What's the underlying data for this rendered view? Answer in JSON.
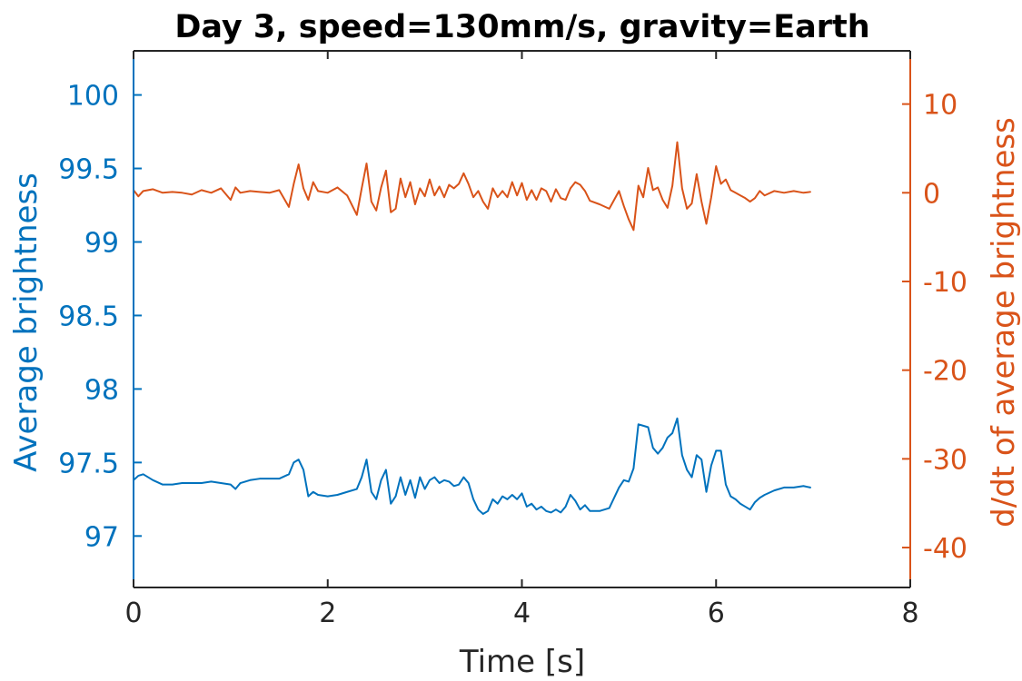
{
  "chart_data": {
    "type": "line",
    "title": "Day 3, speed=130mm/s, gravity=Earth",
    "xlabel": "Time [s]",
    "ylabel_left": "Average brightness",
    "ylabel_right": "d/dt of average brightness",
    "xlim": [
      0,
      8
    ],
    "ylim_left": [
      96.65,
      100.3
    ],
    "ylim_right": [
      -44.5,
      16
    ],
    "x_ticks": [
      "0",
      "2",
      "4",
      "6",
      "8"
    ],
    "y_left_ticks": [
      "97",
      "97.5",
      "98",
      "98.5",
      "99",
      "99.5",
      "100"
    ],
    "y_right_ticks": [
      "-40",
      "-30",
      "-20",
      "-10",
      "0",
      "10"
    ],
    "grid": false,
    "colors": {
      "left": "#0072BD",
      "right": "#D95319",
      "frame": "#262626"
    },
    "series": [
      {
        "axis": "left",
        "x": [
          0.0,
          0.05,
          0.1,
          0.2,
          0.3,
          0.4,
          0.5,
          0.6,
          0.7,
          0.8,
          0.9,
          1.0,
          1.05,
          1.1,
          1.2,
          1.3,
          1.4,
          1.5,
          1.6,
          1.65,
          1.7,
          1.75,
          1.8,
          1.85,
          1.9,
          2.0,
          2.1,
          2.2,
          2.3,
          2.35,
          2.4,
          2.45,
          2.5,
          2.55,
          2.6,
          2.65,
          2.7,
          2.75,
          2.8,
          2.85,
          2.9,
          2.95,
          3.0,
          3.05,
          3.1,
          3.15,
          3.2,
          3.25,
          3.3,
          3.35,
          3.4,
          3.45,
          3.5,
          3.55,
          3.6,
          3.65,
          3.7,
          3.75,
          3.8,
          3.85,
          3.9,
          3.95,
          4.0,
          4.05,
          4.1,
          4.15,
          4.2,
          4.25,
          4.3,
          4.35,
          4.4,
          4.45,
          4.5,
          4.55,
          4.6,
          4.65,
          4.7,
          4.8,
          4.9,
          5.0,
          5.05,
          5.1,
          5.15,
          5.2,
          5.25,
          5.3,
          5.35,
          5.4,
          5.45,
          5.5,
          5.55,
          5.6,
          5.65,
          5.7,
          5.75,
          5.8,
          5.85,
          5.9,
          5.95,
          6.0,
          6.05,
          6.1,
          6.15,
          6.2,
          6.25,
          6.3,
          6.35,
          6.4,
          6.45,
          6.5,
          6.6,
          6.7,
          6.8,
          6.9,
          6.97
        ],
        "values": [
          97.38,
          97.41,
          97.42,
          97.38,
          97.35,
          97.35,
          97.36,
          97.36,
          97.36,
          97.37,
          97.36,
          97.35,
          97.32,
          97.36,
          97.38,
          97.39,
          97.39,
          97.39,
          97.42,
          97.5,
          97.52,
          97.45,
          97.27,
          97.3,
          97.28,
          97.27,
          97.28,
          97.3,
          97.32,
          97.4,
          97.52,
          97.3,
          97.25,
          97.38,
          97.45,
          97.22,
          97.27,
          97.4,
          97.28,
          97.38,
          97.26,
          97.4,
          97.32,
          97.38,
          97.4,
          97.36,
          97.38,
          97.37,
          97.34,
          97.35,
          97.4,
          97.36,
          97.25,
          97.18,
          97.15,
          97.17,
          97.25,
          97.22,
          97.27,
          97.25,
          97.28,
          97.25,
          97.29,
          97.2,
          97.22,
          97.18,
          97.2,
          97.17,
          97.16,
          97.18,
          97.16,
          97.2,
          97.28,
          97.24,
          97.18,
          97.21,
          97.17,
          97.17,
          97.19,
          97.33,
          97.38,
          97.37,
          97.46,
          97.76,
          97.75,
          97.74,
          97.6,
          97.56,
          97.6,
          97.67,
          97.7,
          97.8,
          97.55,
          97.45,
          97.4,
          97.55,
          97.52,
          97.3,
          97.48,
          97.58,
          97.58,
          97.35,
          97.27,
          97.25,
          97.22,
          97.2,
          97.18,
          97.23,
          97.26,
          97.28,
          97.31,
          97.33,
          97.33,
          97.34,
          97.33
        ]
      },
      {
        "axis": "right",
        "x": [
          0.0,
          0.05,
          0.1,
          0.2,
          0.3,
          0.4,
          0.5,
          0.6,
          0.7,
          0.8,
          0.9,
          1.0,
          1.05,
          1.1,
          1.2,
          1.3,
          1.4,
          1.5,
          1.6,
          1.65,
          1.7,
          1.75,
          1.8,
          1.85,
          1.9,
          2.0,
          2.1,
          2.2,
          2.3,
          2.35,
          2.4,
          2.45,
          2.5,
          2.55,
          2.6,
          2.65,
          2.7,
          2.75,
          2.8,
          2.85,
          2.9,
          2.95,
          3.0,
          3.05,
          3.1,
          3.15,
          3.2,
          3.25,
          3.3,
          3.35,
          3.4,
          3.45,
          3.5,
          3.55,
          3.6,
          3.65,
          3.7,
          3.75,
          3.8,
          3.85,
          3.9,
          3.95,
          4.0,
          4.05,
          4.1,
          4.15,
          4.2,
          4.25,
          4.3,
          4.35,
          4.4,
          4.45,
          4.5,
          4.55,
          4.6,
          4.65,
          4.7,
          4.8,
          4.9,
          5.0,
          5.05,
          5.1,
          5.15,
          5.2,
          5.25,
          5.3,
          5.35,
          5.4,
          5.45,
          5.5,
          5.55,
          5.6,
          5.65,
          5.7,
          5.75,
          5.8,
          5.85,
          5.9,
          5.95,
          6.0,
          6.05,
          6.1,
          6.15,
          6.2,
          6.25,
          6.3,
          6.35,
          6.4,
          6.45,
          6.5,
          6.6,
          6.7,
          6.8,
          6.9,
          6.97
        ],
        "values": [
          0.3,
          -0.4,
          0.2,
          0.4,
          0.0,
          0.1,
          0.0,
          -0.2,
          0.3,
          0.0,
          0.5,
          -0.8,
          0.6,
          0.0,
          0.2,
          0.1,
          0.0,
          0.3,
          -1.6,
          1.0,
          3.2,
          0.5,
          -0.8,
          1.2,
          0.2,
          0.0,
          0.6,
          -0.3,
          -2.5,
          0.5,
          3.3,
          -1.0,
          -2.0,
          0.6,
          2.5,
          -2.2,
          -1.8,
          1.6,
          -0.5,
          1.2,
          -1.3,
          0.5,
          -0.4,
          1.5,
          -0.3,
          0.7,
          -0.5,
          0.9,
          0.5,
          1.0,
          2.2,
          1.0,
          -0.5,
          0.2,
          -1.0,
          -1.8,
          0.5,
          -0.5,
          0.2,
          -0.5,
          1.2,
          -0.3,
          1.1,
          -0.8,
          0.3,
          -0.8,
          0.5,
          0.2,
          -1.0,
          0.4,
          -0.6,
          -0.8,
          0.5,
          1.2,
          0.9,
          0.2,
          -0.9,
          -1.3,
          -1.8,
          0.2,
          -1.5,
          -3.0,
          -4.2,
          0.8,
          -0.5,
          2.8,
          0.3,
          0.6,
          -0.8,
          -1.7,
          0.8,
          5.7,
          0.5,
          -1.8,
          -1.2,
          2.1,
          -1.0,
          -3.5,
          -0.5,
          3.0,
          1.0,
          1.5,
          0.3,
          0.0,
          -0.3,
          -0.6,
          -1.0,
          -0.6,
          0.2,
          -0.3,
          0.2,
          0.0,
          0.2,
          0.0,
          0.1
        ]
      }
    ]
  }
}
